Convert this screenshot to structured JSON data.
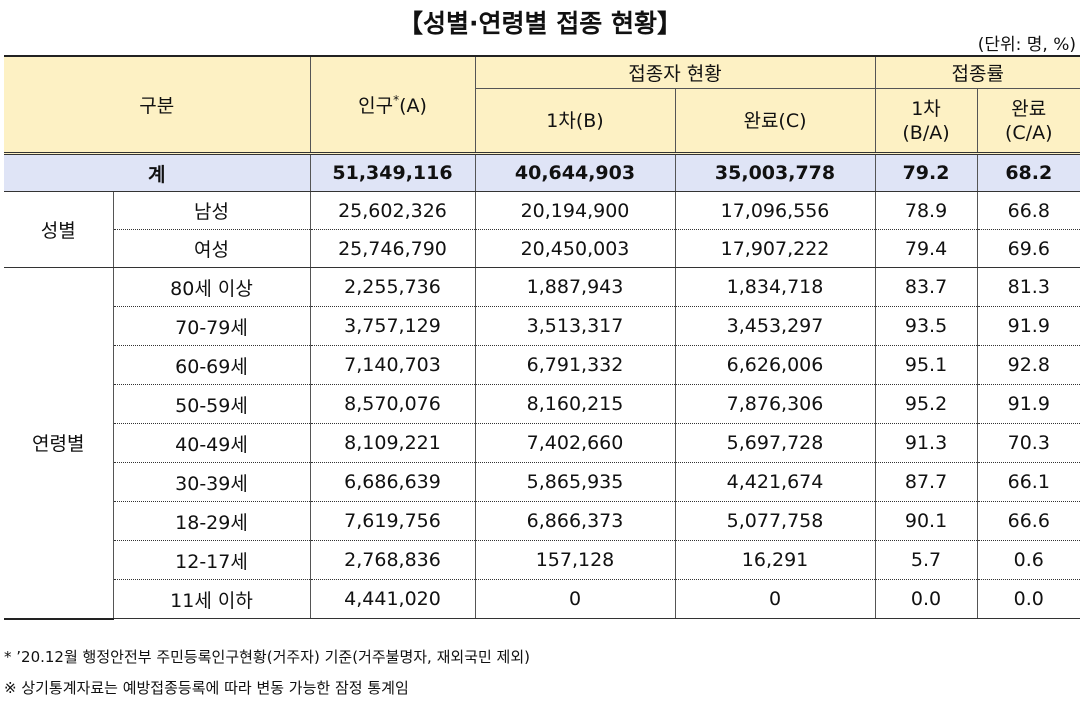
{
  "title": "【성별·연령별 접종 현황】",
  "unit": "(단위: 명, %)",
  "header": {
    "category": "구분",
    "population": {
      "text": "인구",
      "mark": "*",
      "suffix": "(A)"
    },
    "vaccinated": "접종자 현황",
    "first": "1차(B)",
    "complete": "완료(C)",
    "rate": "접종률",
    "first_rate": [
      "1차",
      "(B/A)"
    ],
    "complete_rate": [
      "완료",
      "(C/A)"
    ]
  },
  "total": {
    "label": "계",
    "values": [
      "51,349,116",
      "40,644,903",
      "35,003,778",
      "79.2",
      "68.2"
    ]
  },
  "groups": [
    {
      "label": "성별",
      "rows": [
        {
          "label": "남성",
          "values": [
            "25,602,326",
            "20,194,900",
            "17,096,556",
            "78.9",
            "66.8"
          ]
        },
        {
          "label": "여성",
          "values": [
            "25,746,790",
            "20,450,003",
            "17,907,222",
            "79.4",
            "69.6"
          ]
        }
      ]
    },
    {
      "label": "연령별",
      "rows": [
        {
          "label": "80세 이상",
          "values": [
            "2,255,736",
            "1,887,943",
            "1,834,718",
            "83.7",
            "81.3"
          ]
        },
        {
          "label": "70-79세",
          "values": [
            "3,757,129",
            "3,513,317",
            "3,453,297",
            "93.5",
            "91.9"
          ]
        },
        {
          "label": "60-69세",
          "values": [
            "7,140,703",
            "6,791,332",
            "6,626,006",
            "95.1",
            "92.8"
          ]
        },
        {
          "label": "50-59세",
          "values": [
            "8,570,076",
            "8,160,215",
            "7,876,306",
            "95.2",
            "91.9"
          ]
        },
        {
          "label": "40-49세",
          "values": [
            "8,109,221",
            "7,402,660",
            "5,697,728",
            "91.3",
            "70.3"
          ]
        },
        {
          "label": "30-39세",
          "values": [
            "6,686,639",
            "5,865,935",
            "4,421,674",
            "87.7",
            "66.1"
          ]
        },
        {
          "label": "18-29세",
          "values": [
            "7,619,756",
            "6,866,373",
            "5,077,758",
            "90.1",
            "66.6"
          ]
        },
        {
          "label": "12-17세",
          "values": [
            "2,768,836",
            "157,128",
            "16,291",
            "5.7",
            "0.6"
          ]
        },
        {
          "label": "11세 이하",
          "values": [
            "4,441,020",
            "0",
            "0",
            "0.0",
            "0.0"
          ]
        }
      ]
    }
  ],
  "notes": [
    "* ’20.12월 행정안전부 주민등록인구현황(거주자) 기준(거주불명자, 재외국민 제외)",
    "※ 상기통계자료는 예방접종등록에 따라 변동 가능한 잠정 통계임"
  ]
}
